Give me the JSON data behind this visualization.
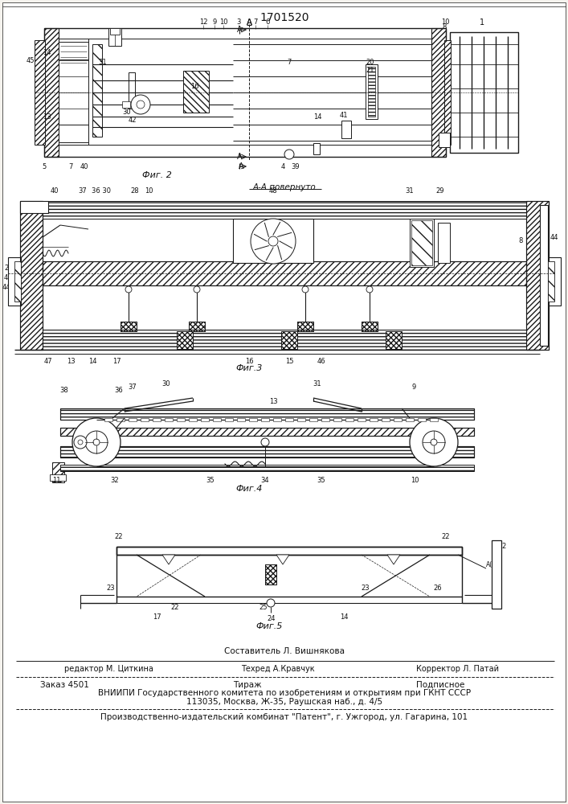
{
  "title": "1701520",
  "bg_color": "#f5f3ee",
  "fig_width": 7.07,
  "fig_height": 10.0,
  "dpi": 100,
  "fig2_label": "Фиг. 2",
  "fig3_label": "Фиг.3",
  "fig4_label": "Фиг.4",
  "fig5_label": "Фиг.5",
  "section_label": "А-А повернуто",
  "footer_line1": "Составитель Л. Вишнякова",
  "footer_editor": "редактор М. Циткина",
  "footer_techred": "Техред А.Кравчук",
  "footer_corrector": "Корректор Л. Патай",
  "footer_zakaz": "Заказ 4501",
  "footer_tirazh": "Тираж",
  "footer_podpisnoe": "Подписное",
  "footer_vniip1": "ВНИИПИ Государственного комитета по изобретениям и открытиям при ГКНТ СССР",
  "footer_vniip2": "113035, Москва, Ж-35, Раушская наб., д. 4/5",
  "footer_proizv": "Производственно-издательский комбинат \"Патент\", г. Ужгород, ул. Гагарина, 101",
  "lc": "#1a1a1a",
  "tc": "#111111",
  "white": "#ffffff"
}
